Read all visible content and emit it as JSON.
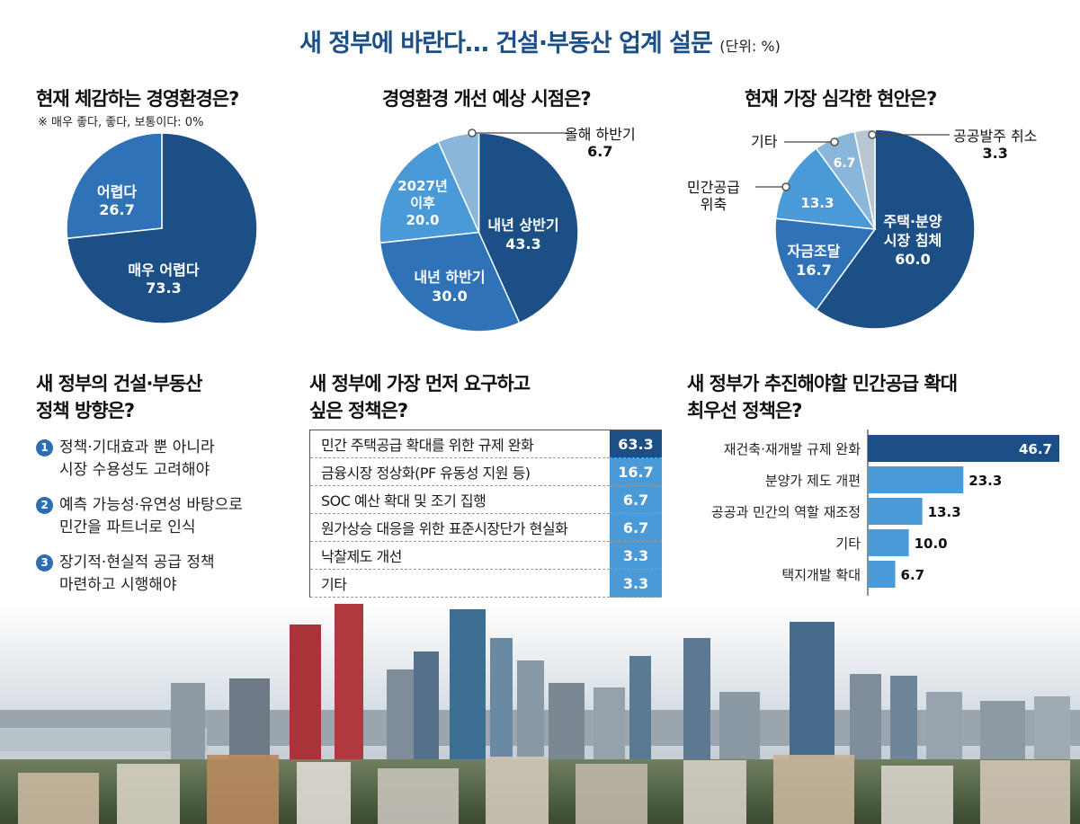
{
  "title": "새 정부에 바란다… 건설·부동산 업계 설문",
  "unit": "(단위: %)",
  "colors": {
    "dark": "#1c4f86",
    "medium": "#2f72b8",
    "light": "#4a9ad8",
    "pale": "#8ab6da",
    "grey": "#b9c6d2"
  },
  "chart_data": [
    {
      "type": "pie",
      "title": "현재 체감하는 경영환경은?",
      "note": "※ 매우 좋다, 좋다, 보통이다: 0%",
      "categories": [
        "매우 어렵다",
        "어렵다"
      ],
      "values": [
        73.3,
        26.7
      ],
      "colors": [
        "#1c4f86",
        "#2f72b8"
      ]
    },
    {
      "type": "pie",
      "title": "경영환경 개선 예상 시점은?",
      "categories": [
        "내년 상반기",
        "내년 하반기",
        "2027년 이후",
        "올해 하반기"
      ],
      "values": [
        43.3,
        30.0,
        20.0,
        6.7
      ],
      "colors": [
        "#1c4f86",
        "#2f72b8",
        "#4a9ad8",
        "#8ab6da"
      ]
    },
    {
      "type": "pie",
      "title": "현재 가장 심각한 현안은?",
      "categories": [
        "주택·분양 시장 침체",
        "자금조달",
        "민간공급 위축",
        "기타",
        "공공발주 취소"
      ],
      "values": [
        60.0,
        16.7,
        13.3,
        6.7,
        3.3
      ],
      "colors": [
        "#1c4f86",
        "#2f72b8",
        "#4a9ad8",
        "#8ab6da",
        "#b9c6d2"
      ]
    },
    {
      "type": "table",
      "title": "새 정부에 가장 먼저 요구하고 싶은 정책은?",
      "categories": [
        "민간 주택공급 확대를 위한 규제 완화",
        "금융시장 정상화(PF 유동성 지원 등)",
        "SOC 예산 확대 및 조기 집행",
        "원가상승 대응을 위한 표준시장단가 현실화",
        "낙찰제도 개선",
        "기타"
      ],
      "values": [
        63.3,
        16.7,
        6.7,
        6.7,
        3.3,
        3.3
      ]
    },
    {
      "type": "bar",
      "title": "새 정부가 추진해야할 민간공급 확대 최우선 정책은?",
      "categories": [
        "재건축·재개발 규제 완화",
        "분양가 제도 개편",
        "공공과 민간의 역할 재조정",
        "기타",
        "택지개발 확대"
      ],
      "values": [
        46.7,
        23.3,
        13.3,
        10.0,
        6.7
      ],
      "xlim": [
        0,
        46.7
      ]
    }
  ],
  "labels": {
    "q1_very_hard": "매우 어렵다",
    "q1_very_hard_val": "73.3",
    "q1_hard": "어렵다",
    "q1_hard_val": "26.7",
    "q2_first_half": "내년 상반기",
    "q2_first_half_val": "43.3",
    "q2_second_half": "내년 하반기",
    "q2_second_half_val": "30.0",
    "q2_after_l1": "2027년",
    "q2_after_l2": "이후",
    "q2_after_val": "20.0",
    "q2_this_year": "올해 하반기",
    "q2_this_year_val": "6.7",
    "q3_housing_l1": "주택·분양",
    "q3_housing_l2": "시장 침체",
    "q3_housing_val": "60.0",
    "q3_funding": "자금조달",
    "q3_funding_val": "16.7",
    "q3_private_val": "13.3",
    "q3_private_l1": "민간공급",
    "q3_private_l2": "위축",
    "q3_other_val": "6.7",
    "q3_other": "기타",
    "q3_public": "공공발주 취소",
    "q3_public_val": "3.3"
  },
  "direction": {
    "title_l1": "새 정부의 건설·부동산",
    "title_l2": "정책 방향은?",
    "items": [
      {
        "num": "1",
        "l1": "정책·기대효과 뿐 아니라",
        "l2": "시장 수용성도 고려해야"
      },
      {
        "num": "2",
        "l1": "예측 가능성·유연성 바탕으로",
        "l2": "민간을 파트너로 인식"
      },
      {
        "num": "3",
        "l1": "장기적·현실적 공급 정책",
        "l2": "마련하고 시행해야"
      }
    ]
  },
  "policy_title_l1": "새 정부에 가장 먼저 요구하고",
  "policy_title_l2": "싶은 정책은?",
  "supply_title_l1": "새 정부가 추진해야할 민간공급 확대",
  "supply_title_l2": "최우선 정책은?"
}
